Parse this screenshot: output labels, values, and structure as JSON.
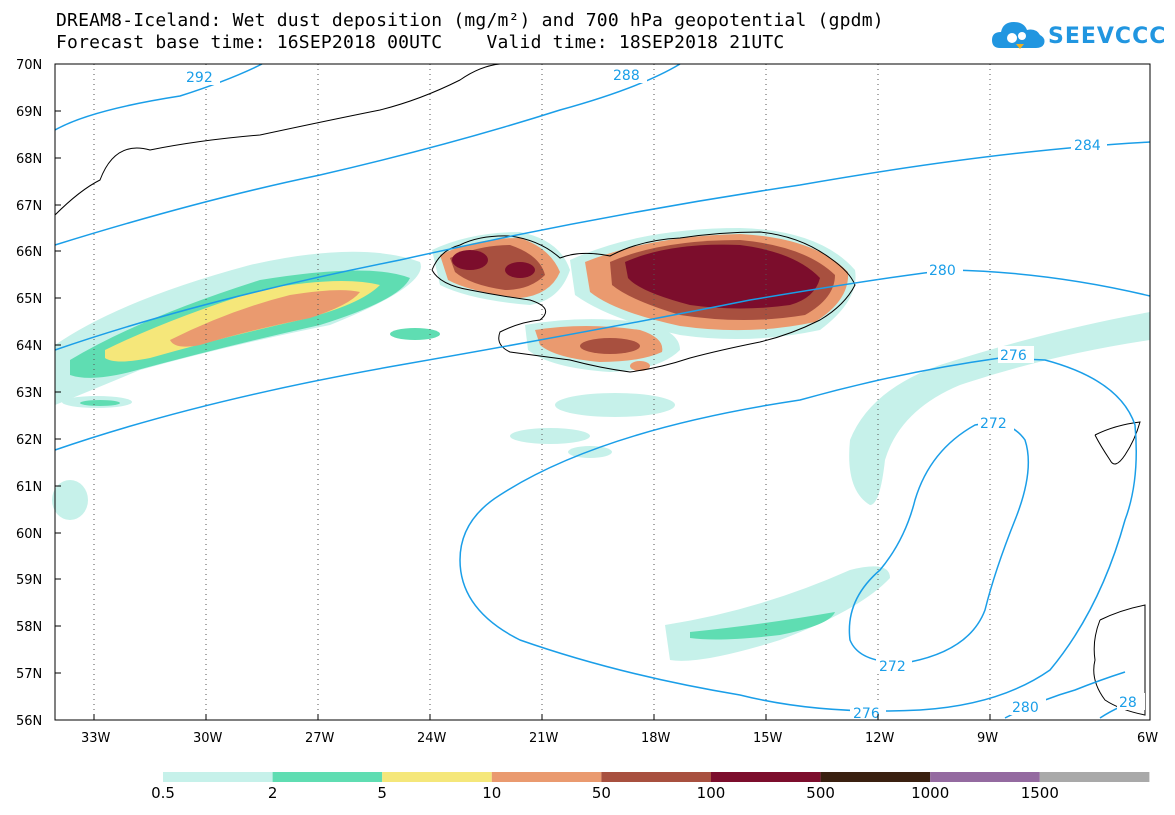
{
  "header": {
    "title_line1": "DREAM8-Iceland: Wet dust deposition (mg/m²) and 700 hPa geopotential (gpdm)",
    "title_line2": "Forecast base time: 16SEP2018 00UTC    Valid time: 18SEP2018 21UTC"
  },
  "logo": {
    "text": "SEEVCCC",
    "icon": "cloud-icon",
    "color": "#2196e0"
  },
  "map": {
    "lat_labels": [
      "70N",
      "69N",
      "68N",
      "67N",
      "66N",
      "65N",
      "64N",
      "63N",
      "62N",
      "61N",
      "60N",
      "59N",
      "58N",
      "57N",
      "56N"
    ],
    "lon_labels": [
      "33W",
      "30W",
      "27W",
      "24W",
      "21W",
      "18W",
      "15W",
      "12W",
      "9W",
      "6W"
    ],
    "contour_labels": {
      "c292": "292",
      "c288": "288",
      "c284": "284",
      "c280a": "280",
      "c276a": "276",
      "c272a": "272",
      "c272b": "272",
      "c276b": "276",
      "c280b": "280",
      "c28x": "28"
    }
  },
  "legend": {
    "colors": [
      "#c6f1ea",
      "#5fddb2",
      "#f5e77a",
      "#ea9a6f",
      "#a8503f",
      "#7c0d2c",
      "#3a2010",
      "#946aa0",
      "#a9a9a9"
    ],
    "labels": [
      "0.5",
      "2",
      "5",
      "10",
      "50",
      "100",
      "500",
      "1000",
      "1500"
    ]
  }
}
